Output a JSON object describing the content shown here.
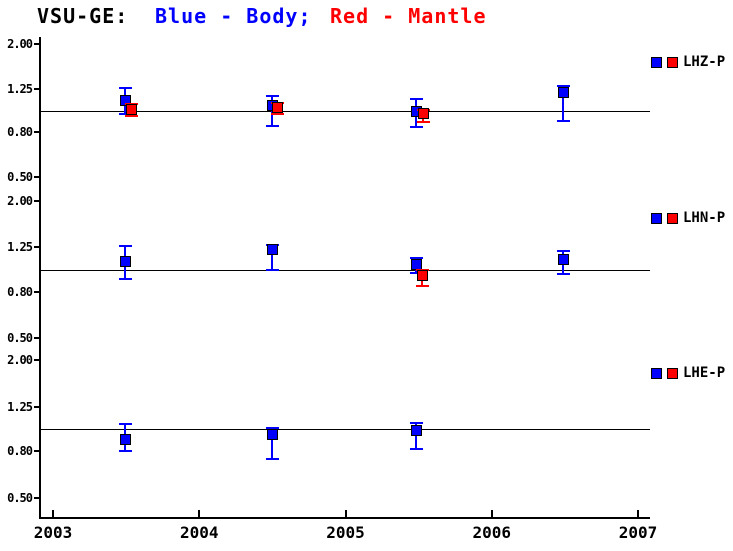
{
  "colors": {
    "background": "#ffffff",
    "body": "#0000ff",
    "mantle": "#ff0000",
    "axis": "#000000"
  },
  "chart_data": {
    "type": "scatter",
    "title": {
      "station": "VSU-GE:",
      "body_legend": "Blue - Body;",
      "mantle_legend": "Red - Mantle"
    },
    "x_axis": {
      "range": [
        2003,
        2007
      ],
      "tick_values": [
        2003,
        2004,
        2005,
        2006,
        2007
      ],
      "tick_labels": [
        "2003",
        "2004",
        "2005",
        "2006",
        "2007"
      ]
    },
    "y_axis": {
      "scale": "log",
      "range": [
        0.5,
        2.0
      ],
      "tick_values": [
        2.0,
        1.25,
        0.8,
        0.5
      ],
      "tick_labels": [
        "2.00",
        "1.25",
        "0.80",
        "0.50"
      ],
      "reference_value": 1.0
    },
    "series": [
      {
        "id": "body",
        "color_name": "blue",
        "label": "Body"
      },
      {
        "id": "mantle",
        "color_name": "red",
        "label": "Mantle"
      }
    ],
    "panels": [
      {
        "label": "LHZ-P",
        "points": [
          {
            "series": "body",
            "x": 2003.49,
            "v": 1.12,
            "lo": 0.96,
            "hi": 1.26
          },
          {
            "series": "mantle",
            "x": 2003.53,
            "v": 1.02,
            "lo": 0.94,
            "hi": 1.07
          },
          {
            "series": "body",
            "x": 2004.5,
            "v": 1.06,
            "lo": 0.85,
            "hi": 1.16
          },
          {
            "series": "mantle",
            "x": 2004.53,
            "v": 1.04,
            "lo": 0.96,
            "hi": 1.08
          },
          {
            "series": "body",
            "x": 2005.48,
            "v": 0.99,
            "lo": 0.84,
            "hi": 1.13
          },
          {
            "series": "mantle",
            "x": 2005.53,
            "v": 0.97,
            "lo": 0.89,
            "hi": 1.01
          },
          {
            "series": "body",
            "x": 2006.49,
            "v": 1.21,
            "lo": 0.9,
            "hi": 1.29
          }
        ]
      },
      {
        "label": "LHN-P",
        "points": [
          {
            "series": "body",
            "x": 2003.49,
            "v": 1.09,
            "lo": 0.91,
            "hi": 1.27
          },
          {
            "series": "body",
            "x": 2004.5,
            "v": 1.23,
            "lo": 1.0,
            "hi": 1.28
          },
          {
            "series": "body",
            "x": 2005.48,
            "v": 1.06,
            "lo": 0.97,
            "hi": 1.12
          },
          {
            "series": "mantle",
            "x": 2005.52,
            "v": 0.95,
            "lo": 0.85,
            "hi": 0.99
          },
          {
            "series": "body",
            "x": 2006.49,
            "v": 1.11,
            "lo": 0.96,
            "hi": 1.21
          }
        ]
      },
      {
        "label": "LHE-P",
        "points": [
          {
            "series": "body",
            "x": 2003.49,
            "v": 0.9,
            "lo": 0.8,
            "hi": 1.05
          },
          {
            "series": "body",
            "x": 2004.5,
            "v": 0.95,
            "lo": 0.74,
            "hi": 1.01
          },
          {
            "series": "body",
            "x": 2005.48,
            "v": 0.99,
            "lo": 0.82,
            "hi": 1.06
          }
        ]
      }
    ]
  }
}
